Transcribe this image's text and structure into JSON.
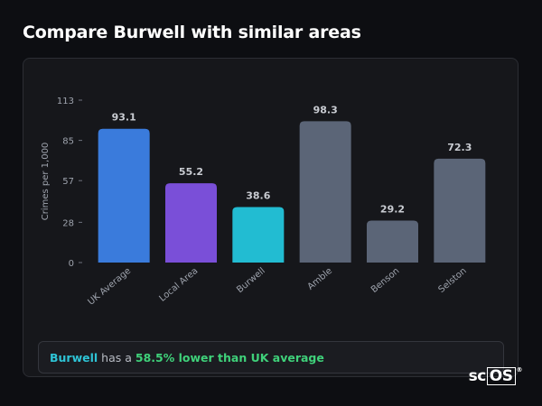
{
  "page": {
    "title": "Compare Burwell with similar areas"
  },
  "chart_data": {
    "type": "bar",
    "ylabel": "Crimes per 1,000",
    "yticks": [
      0,
      28,
      57,
      85,
      113
    ],
    "ylim": [
      0,
      113
    ],
    "categories": [
      "UK Average",
      "Local Area",
      "Burwell",
      "Amble",
      "Benson",
      "Selston"
    ],
    "values": [
      93.1,
      55.2,
      38.6,
      98.3,
      29.2,
      72.3
    ],
    "value_labels": [
      "93.1",
      "55.2",
      "38.6",
      "98.3",
      "29.2",
      "72.3"
    ],
    "colors": [
      "#3a7bdc",
      "#7a4fd8",
      "#22bcd2",
      "#5b6577",
      "#5b6577",
      "#5b6577"
    ],
    "grid": false
  },
  "summary": {
    "place": "Burwell",
    "middle": " has a ",
    "stat": "58.5% lower than UK average"
  },
  "logo": {
    "text_main": "sc",
    "text_box": "OS",
    "mark": "®"
  }
}
